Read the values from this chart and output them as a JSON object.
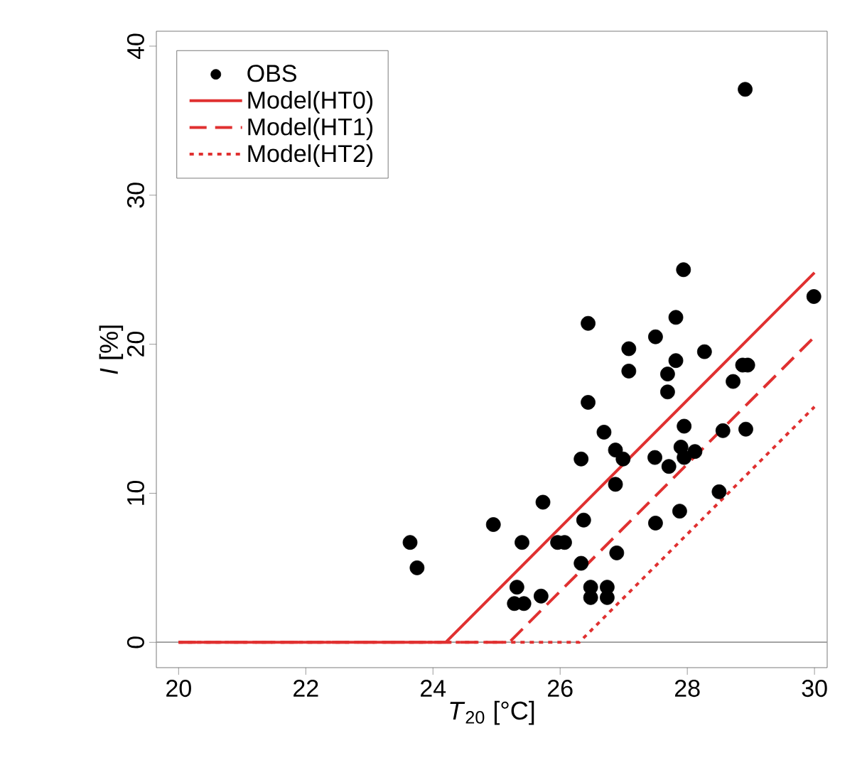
{
  "chart_data": {
    "type": "scatter",
    "xlabel": "*T*$_{20}$ [°C]",
    "ylabel": "*I* [%]",
    "xlim": [
      19.65,
      30.2
    ],
    "ylim": [
      -1.7,
      41
    ],
    "xticks": [
      20,
      22,
      24,
      26,
      28,
      30
    ],
    "yticks": [
      0,
      10,
      20,
      30,
      40
    ],
    "grid": false,
    "legend": "top left",
    "ref_lines": [
      {
        "axis": "y",
        "value": 0,
        "color": "#999999"
      }
    ],
    "series": [
      {
        "name": "OBS",
        "marker": "circle",
        "color": "#000000",
        "x": [
          23.64,
          23.75,
          24.95,
          25.4,
          25.73,
          25.32,
          25.28,
          25.43,
          25.7,
          25.96,
          26.07,
          26.33,
          26.44,
          26.44,
          26.37,
          26.33,
          26.48,
          26.48,
          26.74,
          26.74,
          26.69,
          26.87,
          26.99,
          26.87,
          26.89,
          27.08,
          27.08,
          27.5,
          27.82,
          27.82,
          27.69,
          27.69,
          28.27,
          27.49,
          27.71,
          27.95,
          27.9,
          27.95,
          28.12,
          27.5,
          27.88,
          28.5,
          28.56,
          28.72,
          28.87,
          28.95,
          28.92,
          29.99,
          28.91,
          27.94
        ],
        "values": [
          6.7,
          5.0,
          7.9,
          6.7,
          9.4,
          3.7,
          2.6,
          2.6,
          3.1,
          6.7,
          6.7,
          12.3,
          21.4,
          16.1,
          8.2,
          5.3,
          3.7,
          3.0,
          3.7,
          3.0,
          14.1,
          12.9,
          12.3,
          10.6,
          6.0,
          19.7,
          18.2,
          20.5,
          21.8,
          18.9,
          18.0,
          16.8,
          19.5,
          12.4,
          11.8,
          14.5,
          13.1,
          12.4,
          12.8,
          8.0,
          8.8,
          10.1,
          14.2,
          17.5,
          18.6,
          18.6,
          14.3,
          23.2,
          37.1,
          25.0
        ]
      },
      {
        "name": "Model(HT0)",
        "type": "line",
        "marker": "none",
        "line_style": "solid",
        "color": "#e03030",
        "x": [
          20,
          24.2,
          30
        ],
        "values": [
          0,
          0,
          24.8
        ]
      },
      {
        "name": "Model(HT1)",
        "type": "line",
        "marker": "none",
        "line_style": "dashed",
        "color": "#e03030",
        "x": [
          20,
          25.2,
          30
        ],
        "values": [
          0,
          0,
          20.5
        ]
      },
      {
        "name": "Model(HT2)",
        "type": "line",
        "marker": "none",
        "line_style": "dotted",
        "color": "#e03030",
        "x": [
          20,
          26.3,
          30
        ],
        "values": [
          0,
          0,
          15.8
        ]
      }
    ]
  }
}
